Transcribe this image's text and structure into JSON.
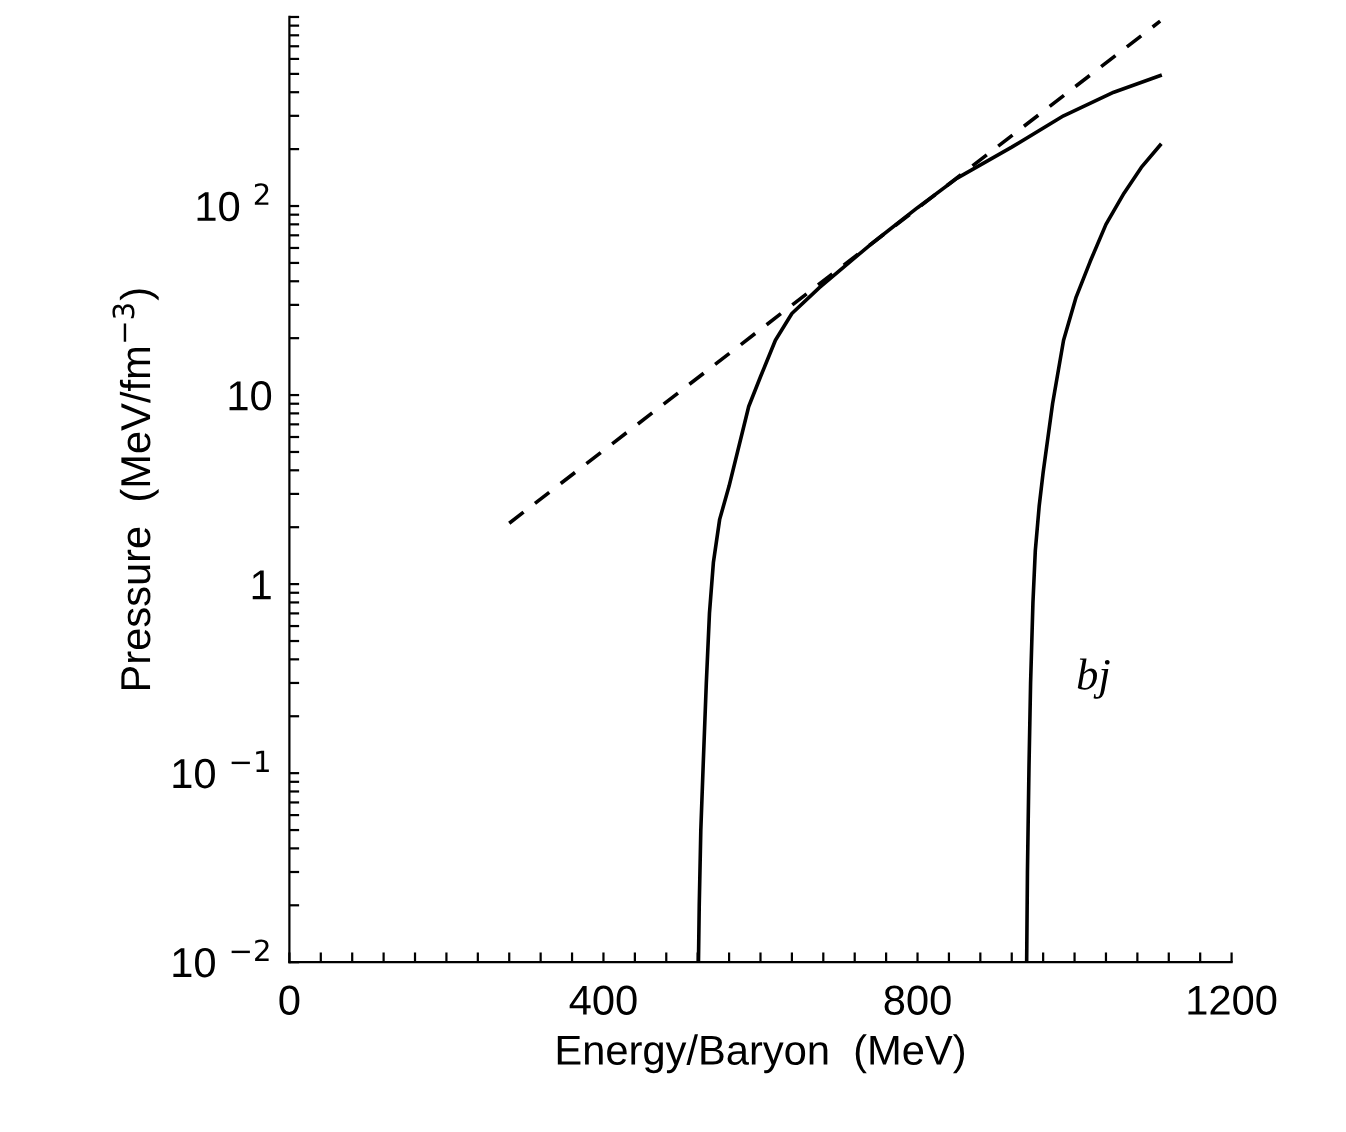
{
  "chart_data": {
    "type": "line",
    "xlabel": "Energy/Baryon  (MeV)",
    "ylabel": "Pressure  (MeV/fm$^{−3}$)",
    "log": "y",
    "grid": false,
    "legend": false,
    "xlim": [
      0,
      1200
    ],
    "ylim": [
      0.01,
      1000
    ],
    "xticks": [
      0,
      {
        "value": 40,
        "label": null
      },
      {
        "value": 80,
        "label": null
      },
      {
        "value": 120,
        "label": null
      },
      {
        "value": 160,
        "label": null
      },
      {
        "value": 200,
        "label": null
      },
      {
        "value": 240,
        "label": null
      },
      {
        "value": 280,
        "label": null
      },
      {
        "value": 320,
        "label": null
      },
      {
        "value": 360,
        "label": null
      },
      400,
      {
        "value": 440,
        "label": null
      },
      {
        "value": 480,
        "label": null
      },
      {
        "value": 520,
        "label": null
      },
      {
        "value": 560,
        "label": null
      },
      {
        "value": 600,
        "label": null
      },
      {
        "value": 640,
        "label": null
      },
      {
        "value": 680,
        "label": null
      },
      {
        "value": 720,
        "label": null
      },
      {
        "value": 760,
        "label": null
      },
      800,
      {
        "value": 840,
        "label": null
      },
      {
        "value": 880,
        "label": null
      },
      {
        "value": 920,
        "label": null
      },
      {
        "value": 960,
        "label": null
      },
      {
        "value": 1000,
        "label": null
      },
      {
        "value": 1040,
        "label": null
      },
      {
        "value": 1080,
        "label": null
      },
      {
        "value": 1120,
        "label": null
      },
      {
        "value": 1160,
        "label": null
      },
      1200
    ],
    "yticks": [
      {
        "value": 0.01,
        "label": "10 $^{−2}$"
      },
      {
        "value": 0.02,
        "label": null
      },
      {
        "value": 0.03,
        "label": null
      },
      {
        "value": 0.04,
        "label": null
      },
      {
        "value": 0.05,
        "label": null
      },
      {
        "value": 0.06,
        "label": null
      },
      {
        "value": 0.07,
        "label": null
      },
      {
        "value": 0.08,
        "label": null
      },
      {
        "value": 0.09,
        "label": null
      },
      {
        "value": 0.1,
        "label": "10 $^{−1}$"
      },
      {
        "value": 0.2,
        "label": null
      },
      {
        "value": 0.3,
        "label": null
      },
      {
        "value": 0.4,
        "label": null
      },
      {
        "value": 0.5,
        "label": null
      },
      {
        "value": 0.6,
        "label": null
      },
      {
        "value": 0.7,
        "label": null
      },
      {
        "value": 0.8,
        "label": null
      },
      {
        "value": 0.9,
        "label": null
      },
      1,
      {
        "value": 2,
        "label": null
      },
      {
        "value": 3,
        "label": null
      },
      {
        "value": 4,
        "label": null
      },
      {
        "value": 5,
        "label": null
      },
      {
        "value": 6,
        "label": null
      },
      {
        "value": 7,
        "label": null
      },
      {
        "value": 8,
        "label": null
      },
      {
        "value": 9,
        "label": null
      },
      10,
      {
        "value": 20,
        "label": null
      },
      {
        "value": 30,
        "label": null
      },
      {
        "value": 40,
        "label": null
      },
      {
        "value": 50,
        "label": null
      },
      {
        "value": 60,
        "label": null
      },
      {
        "value": 70,
        "label": null
      },
      {
        "value": 80,
        "label": null
      },
      {
        "value": 90,
        "label": null
      },
      {
        "value": 100,
        "label": "10 $^{2}$"
      },
      {
        "value": 200,
        "label": null
      },
      {
        "value": 300,
        "label": null
      },
      {
        "value": 400,
        "label": null
      },
      {
        "value": 500,
        "label": null
      },
      {
        "value": 600,
        "label": null
      },
      {
        "value": 700,
        "label": null
      },
      {
        "value": 800,
        "label": null
      },
      {
        "value": 900,
        "label": null
      },
      {
        "value": 1000,
        "label": null
      }
    ],
    "series": [
      {
        "color": "#000000",
        "line_style": "dashed",
        "x": [
          280,
          1109
        ],
        "values": [
          2.1,
          950
        ]
      },
      {
        "color": "#000000",
        "line_style": "solid",
        "x": [
          521,
          522,
          524,
          527,
          531,
          535,
          540,
          548,
          560,
          585,
          600,
          619,
          640,
          675,
          739,
          800,
          850,
          920,
          986,
          1050,
          1109
        ],
        "values": [
          0.01,
          0.02,
          0.05,
          0.11,
          0.3,
          0.7,
          1.3,
          2.2,
          3.3,
          8.7,
          12.5,
          19.5,
          27,
          37,
          62,
          98,
          140,
          205,
          300,
          400,
          490
        ]
      },
      {
        "color": "#000000",
        "line_style": "solid",
        "x": [
          939,
          940,
          942,
          944,
          947,
          950,
          955,
          960,
          972,
          986,
          1002,
          1020,
          1040,
          1063,
          1085,
          1109
        ],
        "values": [
          0.01,
          0.03,
          0.11,
          0.3,
          0.8,
          1.5,
          2.6,
          3.9,
          9,
          19.5,
          33,
          51,
          80,
          117,
          160,
          210
        ]
      }
    ],
    "annotations": [
      "bj"
    ]
  }
}
